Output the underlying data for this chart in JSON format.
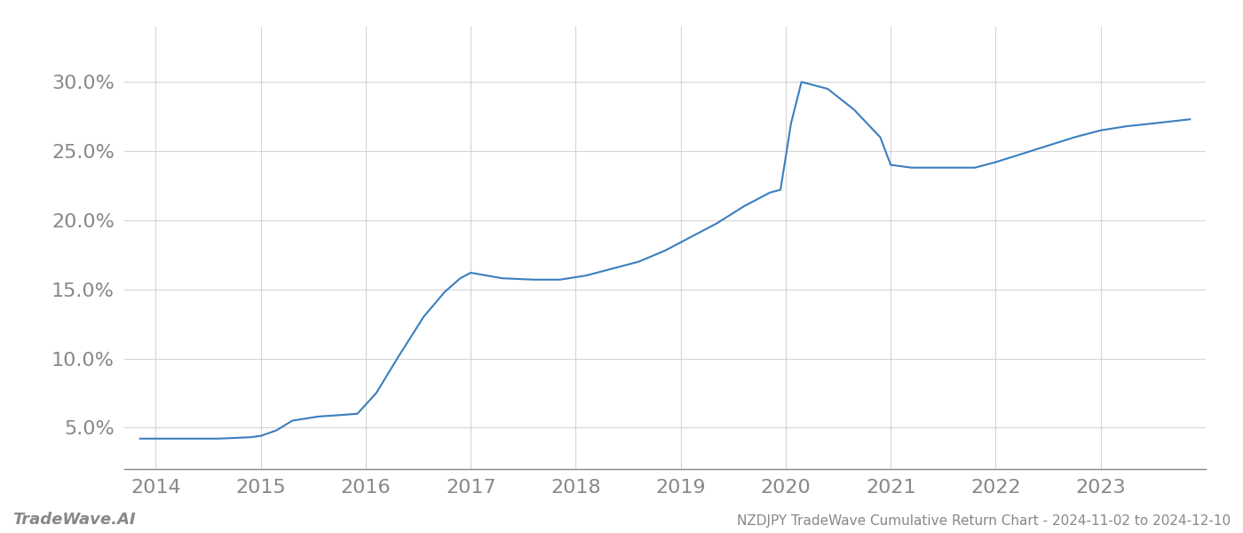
{
  "x_years": [
    2013.85,
    2014.0,
    2014.3,
    2014.6,
    2014.9,
    2015.0,
    2015.15,
    2015.3,
    2015.55,
    2015.75,
    2015.92,
    2016.1,
    2016.3,
    2016.55,
    2016.75,
    2016.9,
    2017.0,
    2017.15,
    2017.3,
    2017.6,
    2017.85,
    2018.1,
    2018.35,
    2018.6,
    2018.85,
    2019.1,
    2019.35,
    2019.6,
    2019.85,
    2019.95,
    2020.05,
    2020.15,
    2020.4,
    2020.65,
    2020.9,
    2021.0,
    2021.2,
    2021.5,
    2021.8,
    2022.0,
    2022.25,
    2022.5,
    2022.75,
    2023.0,
    2023.25,
    2023.5,
    2023.85
  ],
  "y_values": [
    0.042,
    0.042,
    0.042,
    0.042,
    0.043,
    0.044,
    0.048,
    0.055,
    0.058,
    0.059,
    0.06,
    0.075,
    0.1,
    0.13,
    0.148,
    0.158,
    0.162,
    0.16,
    0.158,
    0.157,
    0.157,
    0.16,
    0.165,
    0.17,
    0.178,
    0.188,
    0.198,
    0.21,
    0.22,
    0.222,
    0.27,
    0.3,
    0.295,
    0.28,
    0.26,
    0.24,
    0.238,
    0.238,
    0.238,
    0.242,
    0.248,
    0.254,
    0.26,
    0.265,
    0.268,
    0.27,
    0.273
  ],
  "line_color": "#3a7ebf",
  "line_width": 1.5,
  "title": "NZDJPY TradeWave Cumulative Return Chart - 2024-11-02 to 2024-12-10",
  "watermark": "TradeWave.AI",
  "background_color": "#ffffff",
  "grid_color": "#cccccc",
  "axis_color": "#888888",
  "text_color": "#888888",
  "xlim": [
    2013.7,
    2024.0
  ],
  "ylim": [
    0.02,
    0.34
  ],
  "yticks": [
    0.05,
    0.1,
    0.15,
    0.2,
    0.25,
    0.3
  ],
  "xticks": [
    2014,
    2015,
    2016,
    2017,
    2018,
    2019,
    2020,
    2021,
    2022,
    2023
  ],
  "title_fontsize": 11,
  "tick_fontsize": 16,
  "watermark_fontsize": 13
}
